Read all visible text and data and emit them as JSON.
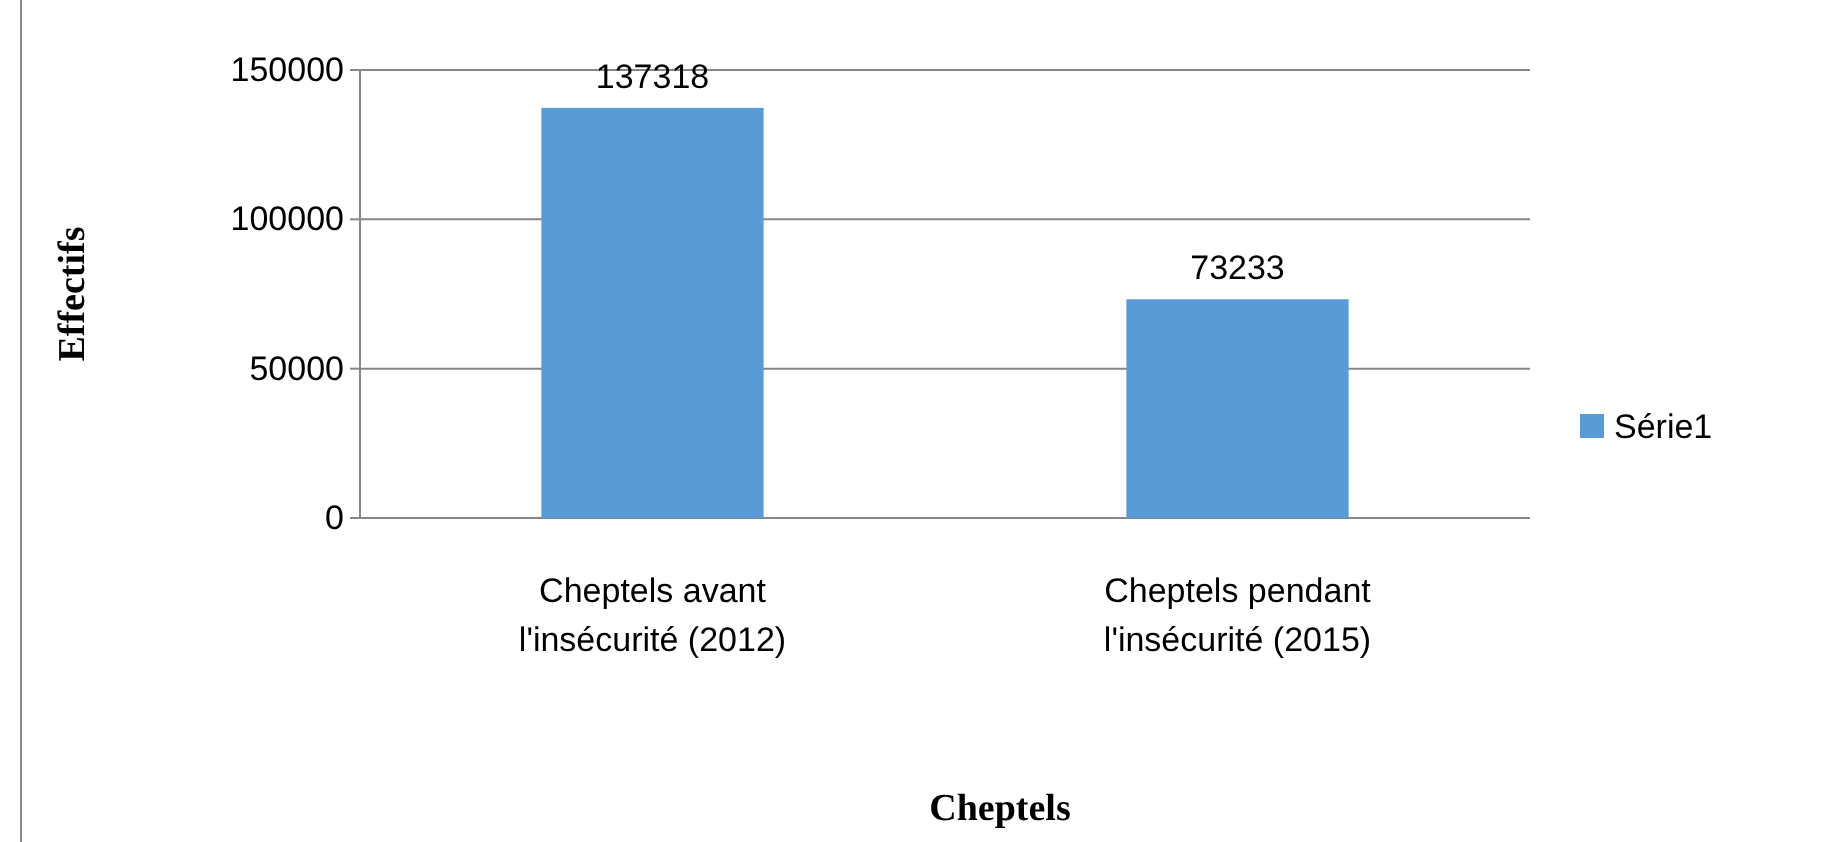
{
  "chart_data": {
    "type": "bar",
    "xlabel": "Cheptels",
    "ylabel": "Effectifs",
    "categories": [
      "Cheptels avant l'insécurité (2012)",
      "Cheptels pendant l'insécurité (2015)"
    ],
    "series": [
      {
        "name": "Série1",
        "color": "#5b9bd5",
        "values": [
          137318,
          73233
        ]
      }
    ],
    "ylim": [
      0,
      150000
    ],
    "yticks": [
      0,
      50000,
      100000,
      150000
    ],
    "grid": "y",
    "legend": "right",
    "data_labels": true
  }
}
